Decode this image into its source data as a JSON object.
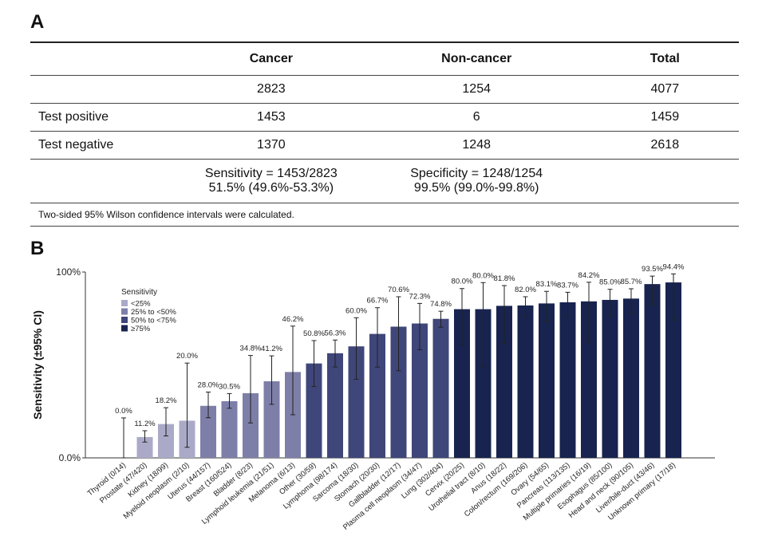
{
  "panelA": {
    "letter": "A",
    "headers": [
      "",
      "Cancer",
      "Non-cancer",
      "Total"
    ],
    "rows": [
      [
        "",
        "2823",
        "1254",
        "4077"
      ],
      [
        "Test positive",
        "1453",
        "6",
        "1459"
      ],
      [
        "Test negative",
        "1370",
        "1248",
        "2618"
      ]
    ],
    "sensitivity_line1": "Sensitivity = 1453/2823",
    "sensitivity_line2": "51.5% (49.6%-53.3%)",
    "specificity_line1": "Specificity = 1248/1254",
    "specificity_line2": "99.5% (99.0%-99.8%)",
    "footnote": "Two-sided 95% Wilson confidence intervals were calculated."
  },
  "panelB": {
    "letter": "B"
  },
  "chart_data": {
    "type": "bar",
    "title": "",
    "xlabel": "",
    "ylabel": "Sensitivity (±95% CI)",
    "ylim": [
      0,
      100
    ],
    "yticks": [
      "0.0%",
      "100%"
    ],
    "legend": {
      "title": "Sensitivity",
      "position": "top-left",
      "entries": [
        {
          "label": "<25%",
          "color": "#aaaac8"
        },
        {
          "label": "25% to <50%",
          "color": "#7d7fa8"
        },
        {
          "label": "50% to <75%",
          "color": "#3f4679"
        },
        {
          "label": "≥75%",
          "color": "#18244f"
        }
      ]
    },
    "categories": [
      "Thyroid (0/14)",
      "Prostate (47/420)",
      "Kidney (18/99)",
      "Myeloid neoplasm (2/10)",
      "Uterus (44/157)",
      "Breast (160/524)",
      "Bladder (8/23)",
      "Lymphoid leukemia (21/51)",
      "Melanoma (6/13)",
      "Other (30/59)",
      "Lymphoma (98/174)",
      "Sarcoma (18/30)",
      "Stomach (20/30)",
      "Gallbladder (12/17)",
      "Plasma cell neoplasm (34/47)",
      "Lung (302/404)",
      "Cervix (20/25)",
      "Urothelial tract (8/10)",
      "Anus (18/22)",
      "Colon/rectum (169/206)",
      "Ovary (54/65)",
      "Pancreas (113/135)",
      "Multiple primaries (16/19)",
      "Esophagus (85/100)",
      "Head and neck (90/105)",
      "Liver/bile-duct (43/46)",
      "Unknown primary (17/18)"
    ],
    "values": [
      0.0,
      11.2,
      18.2,
      20.0,
      28.0,
      30.5,
      34.8,
      41.2,
      46.2,
      50.8,
      56.3,
      60.0,
      66.7,
      70.6,
      72.3,
      74.8,
      80.0,
      80.0,
      81.8,
      82.0,
      83.1,
      83.7,
      84.2,
      85.0,
      85.7,
      93.5,
      94.4
    ],
    "value_labels": [
      "0.0%",
      "11.2%",
      "18.2%",
      "20.0%",
      "28.0%",
      "30.5%",
      "34.8%",
      "41.2%",
      "46.2%",
      "50.8%",
      "56.3%",
      "60.0%",
      "66.7%",
      "70.6%",
      "72.3%",
      "74.8%",
      "80.0%",
      "80.0%",
      "81.8%",
      "82.0%",
      "83.1%",
      "83.7%",
      "84.2%",
      "85.0%",
      "85.7%",
      "93.5%",
      "94.4%"
    ],
    "ci_low": [
      0.0,
      8.5,
      11.8,
      5.7,
      21.6,
      26.7,
      18.8,
      28.8,
      23.2,
      38.4,
      48.9,
      42.3,
      48.8,
      46.9,
      58.2,
      70.3,
      60.9,
      49.0,
      61.5,
      76.2,
      73.6,
      76.5,
      62.4,
      76.7,
      77.7,
      82.5,
      74.2
    ],
    "ci_high": [
      21.5,
      14.6,
      27.0,
      51.0,
      35.4,
      34.6,
      55.1,
      54.9,
      70.9,
      63.1,
      63.4,
      75.4,
      80.8,
      86.7,
      83.1,
      78.9,
      91.1,
      94.3,
      92.7,
      86.7,
      89.6,
      89.1,
      94.5,
      90.7,
      91.0,
      97.8,
      99.0
    ],
    "bin_colors": [
      "#aaaac8",
      "#7d7fa8",
      "#3f4679",
      "#18244f"
    ],
    "grid": false
  }
}
